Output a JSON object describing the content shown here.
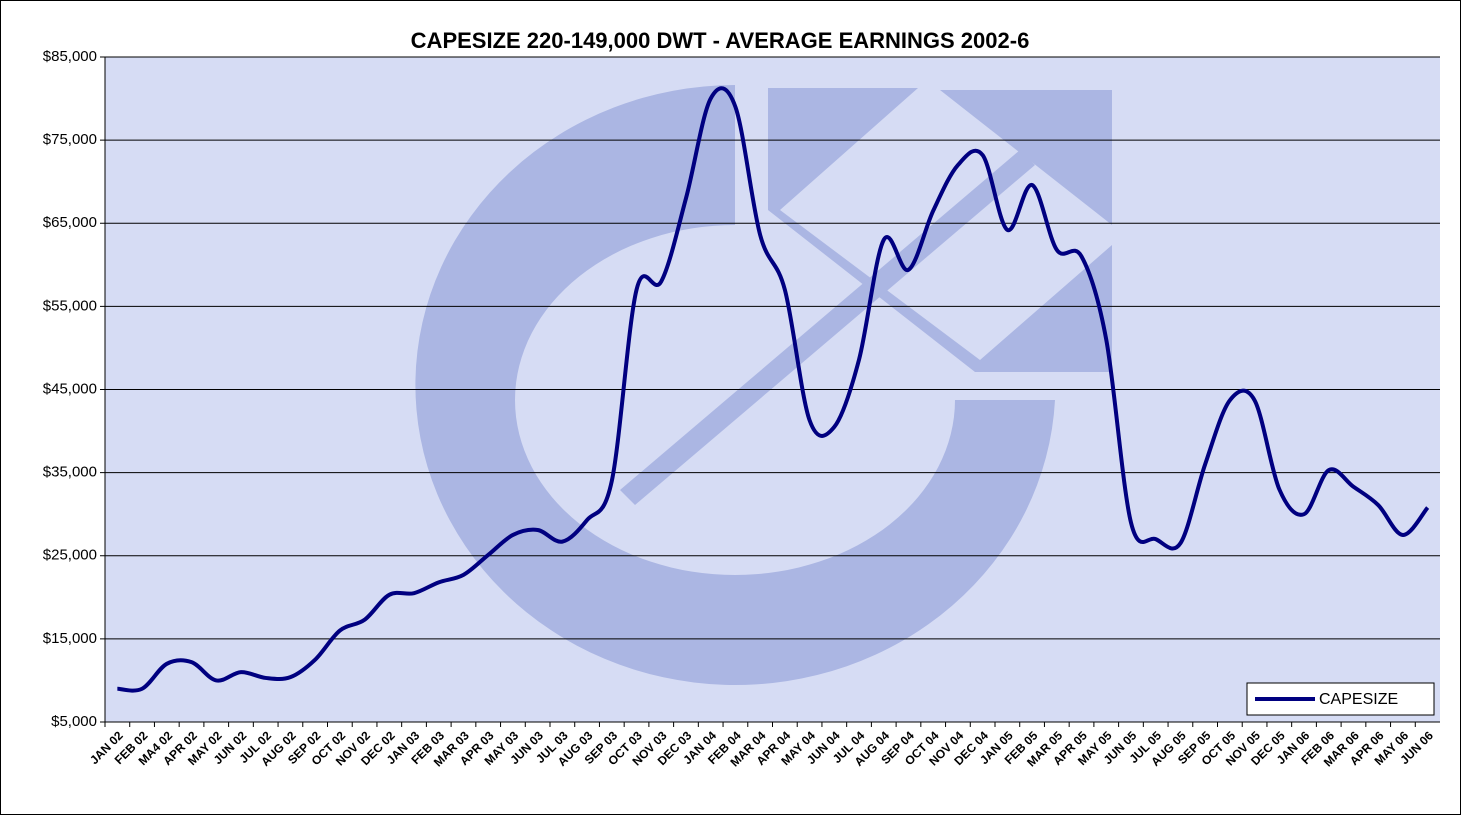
{
  "chart_data": {
    "type": "line",
    "title": "CAPESIZE 220-149,000 DWT - AVERAGE EARNINGS 2002-6",
    "categories": [
      "JAN 02",
      "FEB 02",
      "MA4 02",
      "APR 02",
      "MAY 02",
      "JUN 02",
      "JUL 02",
      "AUG 02",
      "SEP 02",
      "OCT 02",
      "NOV 02",
      "DEC 02",
      "JAN 03",
      "FEB 03",
      "MAR 03",
      "APR 03",
      "MAY 03",
      "JUN 03",
      "JUL 03",
      "AUG 03",
      "SEP 03",
      "OCT 03",
      "NOV 03",
      "DEC 03",
      "JAN 04",
      "FEB 04",
      "MAR 04",
      "APR 04",
      "MAY 04",
      "JUN 04",
      "JUL 04",
      "AUG 04",
      "SEP 04",
      "OCT 04",
      "NOV 04",
      "DEC 04",
      "JAN 05",
      "FEB 05",
      "MAR 05",
      "APR 05",
      "MAY 05",
      "JUN 05",
      "JUL 05",
      "AUG 05",
      "SEP 05",
      "OCT 05",
      "NOV 05",
      "DEC 05",
      "JAN 06",
      "FEB 06",
      "MAR 06",
      "APR 06",
      "MAY 06",
      "JUN 06"
    ],
    "series": [
      {
        "name": "CAPESIZE",
        "color": "#000080",
        "values": [
          9000,
          9000,
          12000,
          12200,
          10000,
          11000,
          10300,
          10400,
          12500,
          16000,
          17300,
          20300,
          20500,
          21800,
          22700,
          25100,
          27500,
          28100,
          26700,
          29300,
          34000,
          57000,
          58000,
          68000,
          80000,
          79000,
          63600,
          57000,
          41300,
          40500,
          48600,
          63000,
          59400,
          66500,
          72000,
          73200,
          64200,
          69600,
          61800,
          61000,
          51000,
          29000,
          27000,
          26500,
          36000,
          43700,
          43700,
          33000,
          30000,
          35300,
          33300,
          31100,
          27500,
          30800
        ]
      }
    ],
    "ylim": [
      5000,
      85000
    ],
    "yticks": [
      {
        "value": 5000,
        "label": "$5,000"
      },
      {
        "value": 15000,
        "label": "$15,000"
      },
      {
        "value": 25000,
        "label": "$25,000"
      },
      {
        "value": 35000,
        "label": "$35,000"
      },
      {
        "value": 45000,
        "label": "$45,000"
      },
      {
        "value": 55000,
        "label": "$55,000"
      },
      {
        "value": 65000,
        "label": "$65,000"
      },
      {
        "value": 75000,
        "label": "$75,000"
      },
      {
        "value": 85000,
        "label": "$85,000"
      }
    ],
    "grid": true,
    "legend": "lower-right"
  }
}
